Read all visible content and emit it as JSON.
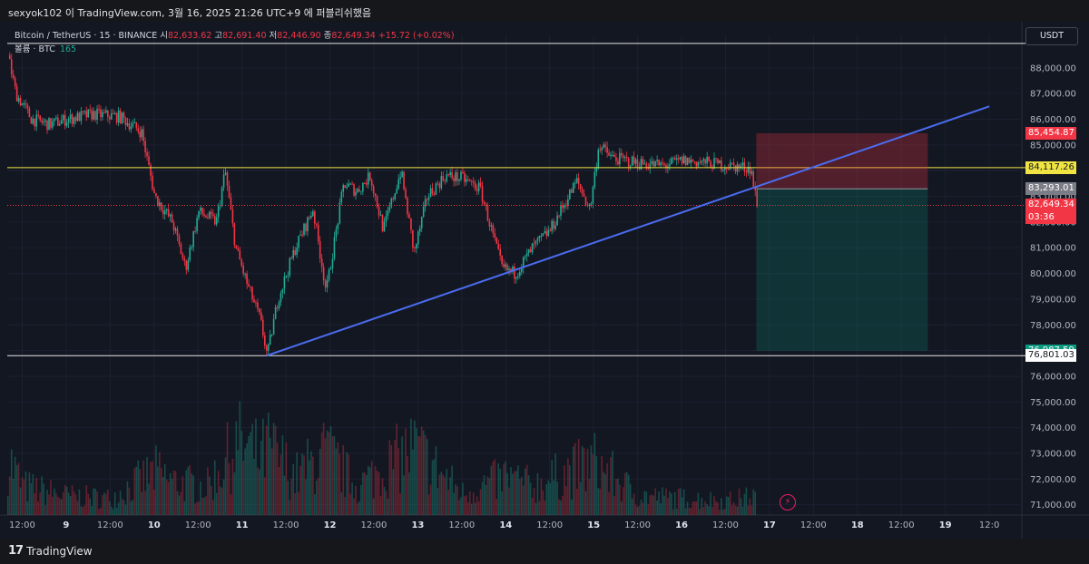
{
  "header": {
    "text": "sexyok102 이 TradingView.com, 3월 16, 2025 21:26 UTC+9 에 퍼블리쉬했음"
  },
  "legend": {
    "symbol": "Bitcoin / TetherUS · 15 · BINANCE",
    "open_label": "시",
    "open": "82,633.62",
    "high_label": "고",
    "high": "82,691.40",
    "low_label": "저",
    "low": "82,446.90",
    "close_label": "종",
    "close": "82,649.34",
    "change": "+15.72 (+0.02%)",
    "volume_label": "볼륨 · BTC",
    "volume": "165"
  },
  "currency": "USDT",
  "footer": {
    "brand": "TradingView",
    "brand_mark": "17"
  },
  "icons": {
    "alert": "lightning-icon"
  },
  "colors": {
    "up": "#22ab94",
    "down": "#f23645",
    "trendline": "#4b6cf0",
    "level_yellow": "#f0e442",
    "level_white": "#e6e6e6"
  },
  "price_tags": [
    {
      "value": "85,454.87",
      "bg": "#f23645",
      "fg": "#ffffff"
    },
    {
      "value": "84,117.26",
      "bg": "#f0e442",
      "fg": "#131722"
    },
    {
      "value": "83,293.01",
      "bg": "#7a7d86",
      "fg": "#ffffff"
    },
    {
      "value": "82,649.34",
      "sub": "03:36",
      "bg": "#f23645",
      "fg": "#ffffff"
    },
    {
      "value": "76,987.59",
      "bg": "#089981",
      "fg": "#ffffff"
    },
    {
      "value": "76,801.03",
      "bg": "#ffffff",
      "fg": "#131722"
    }
  ],
  "chart_data": {
    "type": "candlestick",
    "y_axis": {
      "ticks": [
        71000,
        72000,
        73000,
        74000,
        75000,
        76000,
        77000,
        78000,
        79000,
        80000,
        81000,
        82000,
        83000,
        84000,
        85000,
        86000,
        87000,
        88000
      ],
      "tick_labels": [
        "71,000.00",
        "72,000.00",
        "73,000.00",
        "74,000.00",
        "75,000.00",
        "76,000.00",
        "77,000.00",
        "78,000.00",
        "79,000.00",
        "80,000.00",
        "81,000.00",
        "82,000.00",
        "83,000.00",
        "84,000.00",
        "85,000.00",
        "86,000.00",
        "87,000.00",
        "88,000.00"
      ],
      "range": [
        70600,
        89300
      ]
    },
    "x_axis": {
      "range": [
        8.33,
        19.85
      ],
      "ticks": [
        {
          "t": 8.5,
          "label": "12:00",
          "bold": false
        },
        {
          "t": 9.0,
          "label": "9",
          "bold": true
        },
        {
          "t": 9.5,
          "label": "12:00",
          "bold": false
        },
        {
          "t": 10.0,
          "label": "10",
          "bold": true
        },
        {
          "t": 10.5,
          "label": "12:00",
          "bold": false
        },
        {
          "t": 11.0,
          "label": "11",
          "bold": true
        },
        {
          "t": 11.5,
          "label": "12:00",
          "bold": false
        },
        {
          "t": 12.0,
          "label": "12",
          "bold": true
        },
        {
          "t": 12.5,
          "label": "12:00",
          "bold": false
        },
        {
          "t": 13.0,
          "label": "13",
          "bold": true
        },
        {
          "t": 13.5,
          "label": "12:00",
          "bold": false
        },
        {
          "t": 14.0,
          "label": "14",
          "bold": true
        },
        {
          "t": 14.5,
          "label": "12:00",
          "bold": false
        },
        {
          "t": 15.0,
          "label": "15",
          "bold": true
        },
        {
          "t": 15.5,
          "label": "12:00",
          "bold": false
        },
        {
          "t": 16.0,
          "label": "16",
          "bold": true
        },
        {
          "t": 16.5,
          "label": "12:00",
          "bold": false
        },
        {
          "t": 17.0,
          "label": "17",
          "bold": true
        },
        {
          "t": 17.5,
          "label": "12:00",
          "bold": false
        },
        {
          "t": 18.0,
          "label": "18",
          "bold": true
        },
        {
          "t": 18.5,
          "label": "12:00",
          "bold": false
        },
        {
          "t": 19.0,
          "label": "19",
          "bold": true
        },
        {
          "t": 19.5,
          "label": "12:0",
          "bold": false
        }
      ]
    },
    "price_path": [
      [
        8.33,
        88500
      ],
      [
        8.42,
        87000
      ],
      [
        8.6,
        86000
      ],
      [
        8.8,
        85800
      ],
      [
        9.0,
        86000
      ],
      [
        9.3,
        86200
      ],
      [
        9.6,
        86100
      ],
      [
        9.85,
        85500
      ],
      [
        10.0,
        83000
      ],
      [
        10.2,
        82000
      ],
      [
        10.35,
        80200
      ],
      [
        10.5,
        82400
      ],
      [
        10.7,
        82000
      ],
      [
        10.8,
        84000
      ],
      [
        10.92,
        81000
      ],
      [
        11.05,
        79600
      ],
      [
        11.2,
        78200
      ],
      [
        11.28,
        76800
      ],
      [
        11.4,
        79000
      ],
      [
        11.6,
        81000
      ],
      [
        11.8,
        82500
      ],
      [
        11.95,
        79300
      ],
      [
        12.15,
        83500
      ],
      [
        12.3,
        83200
      ],
      [
        12.45,
        83800
      ],
      [
        12.6,
        81700
      ],
      [
        12.8,
        84000
      ],
      [
        12.95,
        80800
      ],
      [
        13.1,
        83000
      ],
      [
        13.3,
        83800
      ],
      [
        13.5,
        83700
      ],
      [
        13.7,
        83300
      ],
      [
        13.95,
        80200
      ],
      [
        14.1,
        80000
      ],
      [
        14.3,
        81000
      ],
      [
        14.5,
        81700
      ],
      [
        14.8,
        83600
      ],
      [
        14.95,
        82500
      ],
      [
        15.05,
        85000
      ],
      [
        15.2,
        84500
      ],
      [
        15.5,
        84300
      ],
      [
        15.8,
        84200
      ],
      [
        16.0,
        84400
      ],
      [
        16.3,
        84300
      ],
      [
        16.5,
        84200
      ],
      [
        16.78,
        84100
      ],
      [
        16.85,
        82649
      ]
    ],
    "volume_profile": [
      [
        8.33,
        120
      ],
      [
        8.5,
        60
      ],
      [
        9.0,
        40
      ],
      [
        9.5,
        35
      ],
      [
        10.0,
        90
      ],
      [
        10.2,
        70
      ],
      [
        10.6,
        60
      ],
      [
        10.95,
        150
      ],
      [
        11.2,
        120
      ],
      [
        11.3,
        140
      ],
      [
        11.6,
        80
      ],
      [
        11.95,
        130
      ],
      [
        12.3,
        60
      ],
      [
        12.95,
        140
      ],
      [
        13.5,
        45
      ],
      [
        14.0,
        80
      ],
      [
        14.3,
        60
      ],
      [
        15.0,
        110
      ],
      [
        15.5,
        40
      ],
      [
        16.0,
        35
      ],
      [
        16.5,
        30
      ],
      [
        16.85,
        40
      ]
    ],
    "levels": [
      {
        "price": 88950,
        "color": "level_white"
      },
      {
        "price": 84117.26,
        "color": "level_yellow"
      },
      {
        "price": 76801.03,
        "color": "level_white"
      }
    ],
    "trendline": {
      "from": [
        11.28,
        76801
      ],
      "to": [
        19.5,
        86500
      ]
    },
    "position": {
      "start": 16.85,
      "end": 18.8,
      "stop": 85454.87,
      "entry": 83293.01,
      "target": 76987.59
    },
    "last_price": 82649.34
  }
}
